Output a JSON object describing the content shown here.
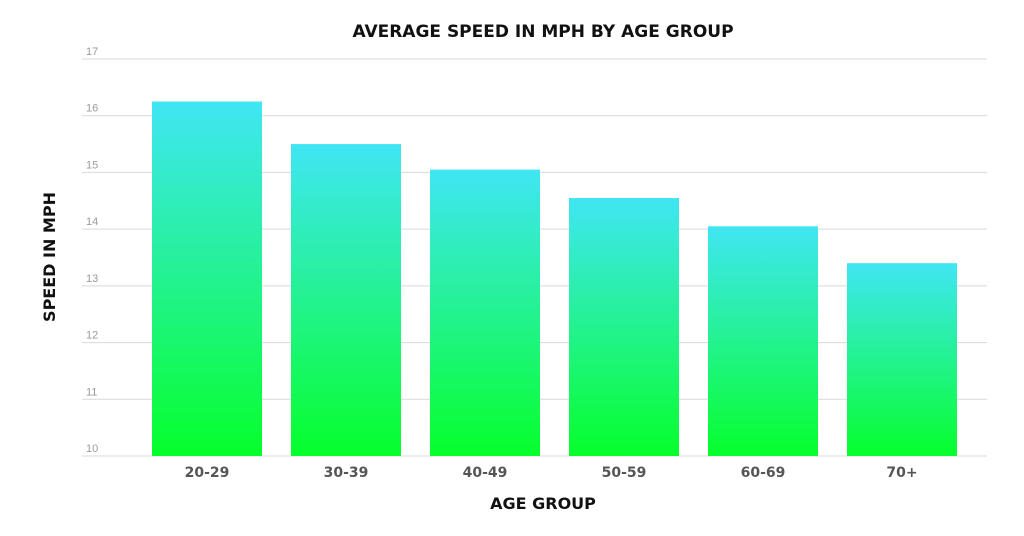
{
  "chart_data": {
    "type": "bar",
    "title": "AVERAGE SPEED IN MPH BY AGE GROUP",
    "xlabel": "AGE GROUP",
    "ylabel": "SPEED IN MPH",
    "categories": [
      "20-29",
      "30-39",
      "40-49",
      "50-59",
      "60-69",
      "70+"
    ],
    "values": [
      16.25,
      15.5,
      15.05,
      14.55,
      14.05,
      13.4
    ],
    "ylim": [
      10,
      17
    ],
    "yticks": [
      "10",
      "11",
      "12",
      "13",
      "14",
      "15",
      "16",
      "17"
    ],
    "grid": true,
    "colors": {
      "bar_top": "#40e6f4",
      "bar_bottom": "#06ff2b"
    }
  }
}
